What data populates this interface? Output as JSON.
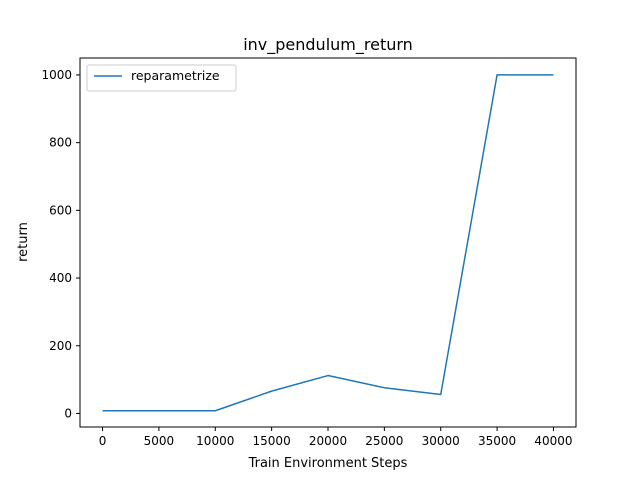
{
  "chart_data": {
    "type": "line",
    "title": "inv_pendulum_return",
    "xlabel": "Train Environment Steps",
    "ylabel": "return",
    "xlim": [
      -2000,
      42000
    ],
    "ylim": [
      -40,
      1050
    ],
    "xticks": [
      0,
      5000,
      10000,
      15000,
      20000,
      25000,
      30000,
      35000,
      40000
    ],
    "yticks": [
      0,
      200,
      400,
      600,
      800,
      1000
    ],
    "grid": false,
    "legend_position": "top-left",
    "series": [
      {
        "name": "reparametrize",
        "color": "#1f77b4",
        "x": [
          0,
          5000,
          10000,
          15000,
          20000,
          25000,
          30000,
          35000,
          40000
        ],
        "y": [
          8,
          8,
          8,
          66,
          112,
          76,
          56,
          1000,
          1000
        ]
      }
    ]
  }
}
